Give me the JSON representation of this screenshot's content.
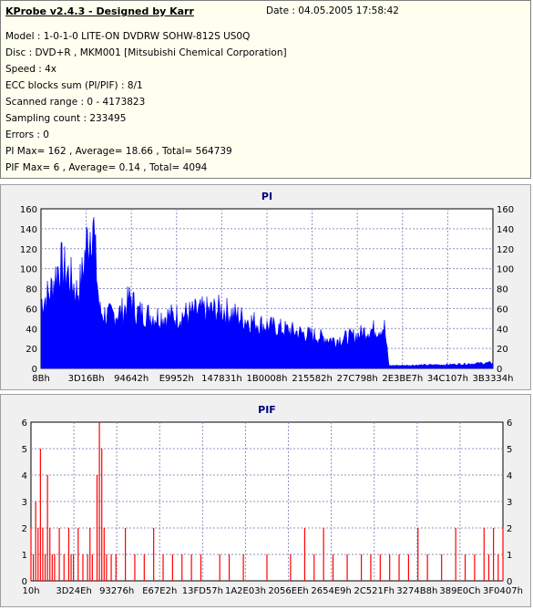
{
  "info": {
    "title": "KProbe v2.4.3 - Designed by Karr",
    "date": "Date : 04.05.2005 17:58:42",
    "lines": [
      "Model : 1-0-1-0 LITE-ON DVDRW SOHW-812S  US0Q",
      "Disc : DVD+R , MKM001 [Mitsubishi Chemical Corporation]",
      "Speed : 4x",
      "ECC blocks sum (PI/PIF) : 8/1",
      "Scanned range : 0 - 4173823",
      "Sampling count : 233495",
      "Errors : 0",
      "PI Max= 162 , Average= 18.66 , Total= 564739",
      "PIF Max= 6 , Average= 0.14 , Total= 4094"
    ]
  },
  "chart_data": [
    {
      "type": "bar",
      "title": "PI",
      "ylim": [
        0,
        160
      ],
      "yticks": [
        0,
        20,
        40,
        60,
        80,
        100,
        120,
        140,
        160
      ],
      "xticks": [
        "8Bh",
        "3D16Bh",
        "94642h",
        "E9952h",
        "147831h",
        "1B0008h",
        "215582h",
        "27C798h",
        "2E3BE7h",
        "34C107h",
        "3B3334h"
      ],
      "grid": true,
      "color": "#0000ff",
      "profile": [
        [
          0.0,
          70
        ],
        [
          0.02,
          80
        ],
        [
          0.04,
          110
        ],
        [
          0.06,
          100
        ],
        [
          0.08,
          80
        ],
        [
          0.09,
          95
        ],
        [
          0.1,
          130
        ],
        [
          0.11,
          150
        ],
        [
          0.115,
          162
        ],
        [
          0.12,
          120
        ],
        [
          0.13,
          60
        ],
        [
          0.15,
          55
        ],
        [
          0.18,
          60
        ],
        [
          0.2,
          75
        ],
        [
          0.21,
          60
        ],
        [
          0.25,
          55
        ],
        [
          0.3,
          55
        ],
        [
          0.35,
          60
        ],
        [
          0.4,
          62
        ],
        [
          0.45,
          52
        ],
        [
          0.5,
          45
        ],
        [
          0.55,
          40
        ],
        [
          0.6,
          35
        ],
        [
          0.65,
          30
        ],
        [
          0.7,
          35
        ],
        [
          0.72,
          40
        ],
        [
          0.75,
          42
        ],
        [
          0.76,
          44
        ],
        [
          0.77,
          3
        ],
        [
          0.9,
          4
        ],
        [
          0.95,
          5
        ],
        [
          1.0,
          6
        ]
      ]
    },
    {
      "type": "bar",
      "title": "PIF",
      "ylim": [
        0,
        6
      ],
      "yticks": [
        0,
        1,
        2,
        3,
        4,
        5,
        6
      ],
      "xticks": [
        "10h",
        "3D24Eh",
        "93276h",
        "E67E2h",
        "13FD57h",
        "1A2E03h",
        "2056EEh",
        "2654E9h",
        "2C521Fh",
        "3274B8h",
        "389E0Ch",
        "3F0407h"
      ],
      "grid": true,
      "color": "#ff0000",
      "bars": [
        [
          0.0,
          2
        ],
        [
          0.005,
          1
        ],
        [
          0.01,
          3
        ],
        [
          0.015,
          2
        ],
        [
          0.02,
          5
        ],
        [
          0.025,
          2
        ],
        [
          0.03,
          1
        ],
        [
          0.035,
          4
        ],
        [
          0.04,
          2
        ],
        [
          0.045,
          1
        ],
        [
          0.05,
          1
        ],
        [
          0.06,
          2
        ],
        [
          0.07,
          1
        ],
        [
          0.08,
          2
        ],
        [
          0.085,
          1
        ],
        [
          0.09,
          1
        ],
        [
          0.1,
          2
        ],
        [
          0.11,
          1
        ],
        [
          0.12,
          1
        ],
        [
          0.125,
          2
        ],
        [
          0.13,
          1
        ],
        [
          0.14,
          4
        ],
        [
          0.145,
          6
        ],
        [
          0.15,
          5
        ],
        [
          0.155,
          2
        ],
        [
          0.16,
          1
        ],
        [
          0.17,
          1
        ],
        [
          0.18,
          1
        ],
        [
          0.2,
          2
        ],
        [
          0.22,
          1
        ],
        [
          0.24,
          1
        ],
        [
          0.26,
          2
        ],
        [
          0.28,
          1
        ],
        [
          0.3,
          1
        ],
        [
          0.32,
          1
        ],
        [
          0.34,
          1
        ],
        [
          0.36,
          1
        ],
        [
          0.4,
          1
        ],
        [
          0.42,
          1
        ],
        [
          0.45,
          1
        ],
        [
          0.5,
          1
        ],
        [
          0.55,
          1
        ],
        [
          0.58,
          2
        ],
        [
          0.6,
          1
        ],
        [
          0.62,
          2
        ],
        [
          0.64,
          1
        ],
        [
          0.67,
          1
        ],
        [
          0.7,
          1
        ],
        [
          0.72,
          1
        ],
        [
          0.74,
          1
        ],
        [
          0.76,
          1
        ],
        [
          0.78,
          1
        ],
        [
          0.8,
          1
        ],
        [
          0.82,
          2
        ],
        [
          0.84,
          1
        ],
        [
          0.87,
          1
        ],
        [
          0.9,
          2
        ],
        [
          0.92,
          1
        ],
        [
          0.94,
          1
        ],
        [
          0.96,
          2
        ],
        [
          0.97,
          1
        ],
        [
          0.98,
          2
        ],
        [
          0.99,
          1
        ],
        [
          1.0,
          2
        ]
      ]
    }
  ]
}
